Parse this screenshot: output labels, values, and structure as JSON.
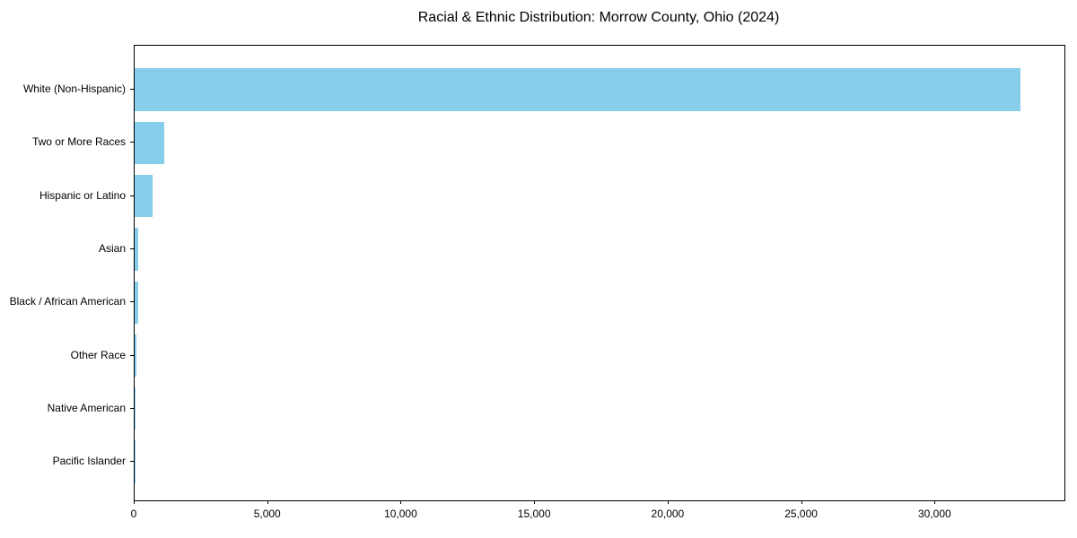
{
  "chart_data": {
    "type": "bar",
    "orientation": "horizontal",
    "title": "Racial & Ethnic Distribution: Morrow County, Ohio (2024)",
    "categories": [
      "White (Non-Hispanic)",
      "Two or More Races",
      "Hispanic or Latino",
      "Asian",
      "Black / African American",
      "Other Race",
      "Native American",
      "Pacific Islander"
    ],
    "values": [
      33180,
      1100,
      680,
      130,
      150,
      75,
      30,
      5
    ],
    "bar_color": "#87CEEB",
    "xlabel": "",
    "ylabel": "",
    "xlim": [
      0,
      34830
    ],
    "x_ticks": [
      0,
      5000,
      10000,
      15000,
      20000,
      25000,
      30000
    ],
    "x_tick_labels": [
      "0",
      "5,000",
      "10,000",
      "15,000",
      "20,000",
      "25,000",
      "30,000"
    ],
    "grid": false,
    "legend_position": "none"
  }
}
